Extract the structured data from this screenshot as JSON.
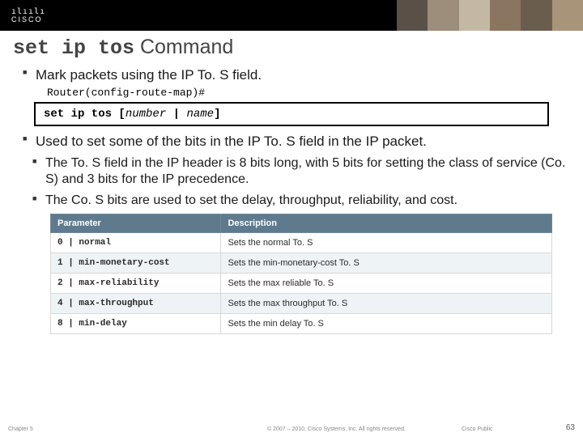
{
  "logo": {
    "bars": "ılıılı",
    "name": "CISCO"
  },
  "title": {
    "cmd": "set ip tos",
    "word": " Command"
  },
  "bullets": {
    "b1": "Mark packets using the IP To. S field.",
    "prompt": "Router(config-route-map)#",
    "cmd_bold1": "set ip tos [",
    "cmd_ital1": "number",
    "cmd_pipe": " | ",
    "cmd_ital2": "name",
    "cmd_bold2": "]",
    "b2": "Used to set some of the bits in the IP To. S field in the IP packet.",
    "s1": "The To. S field in the IP header is 8 bits long, with 5 bits for setting the class of service (Co. S) and 3 bits for the IP precedence.",
    "s2": "The Co. S bits are used to set the delay, throughput, reliability, and cost."
  },
  "table": {
    "header": {
      "c1": "Parameter",
      "c2": "Description"
    },
    "rows": [
      {
        "param": "0 | normal",
        "desc": "Sets the normal To. S"
      },
      {
        "param": "1 | min-monetary-cost",
        "desc": "Sets the min-monetary-cost To. S"
      },
      {
        "param": "2 | max-reliability",
        "desc": "Sets the max reliable To. S"
      },
      {
        "param": "4 | max-throughput",
        "desc": "Sets the max throughput To. S"
      },
      {
        "param": "8 | min-delay",
        "desc": "Sets the min delay To. S"
      }
    ],
    "header_bg": "#5f7a8c",
    "row_odd_bg": "#ffffff",
    "row_even_bg": "#eef3f5"
  },
  "footer": {
    "chapter": "Chapter 5",
    "copyright": "© 2007 – 2010, Cisco Systems, Inc. All rights reserved.",
    "public": "Cisco Public",
    "page": "63"
  }
}
